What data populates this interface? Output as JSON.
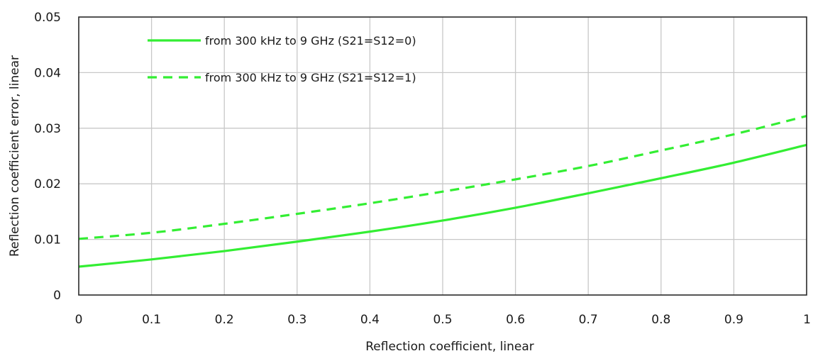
{
  "chart_data": {
    "type": "line",
    "title": "",
    "xlabel": "Reflection coefficient, linear",
    "ylabel": "Reflection coefficient error, linear",
    "xlim": [
      0,
      1
    ],
    "ylim": [
      0,
      0.05
    ],
    "x_ticks": [
      0,
      0.1,
      0.2,
      0.3,
      0.4,
      0.5,
      0.6,
      0.7,
      0.8,
      0.9,
      1
    ],
    "x_tick_labels": [
      "0",
      "0.1",
      "0.2",
      "0.3",
      "0.4",
      "0.5",
      "0.6",
      "0.7",
      "0.8",
      "0.9",
      "1"
    ],
    "y_ticks": [
      0,
      0.01,
      0.02,
      0.03,
      0.04,
      0.05
    ],
    "y_tick_labels": [
      "0",
      "0.01",
      "0.02",
      "0.03",
      "0.04",
      "0.05"
    ],
    "grid": true,
    "legend_position": "top-left",
    "x": [
      0,
      0.1,
      0.2,
      0.3,
      0.4,
      0.5,
      0.6,
      0.7,
      0.8,
      0.9,
      1
    ],
    "series": [
      {
        "name": "from 300 kHz to 9 GHz (S21=S12=0)",
        "color": "#33ee33",
        "dash": "solid",
        "values": [
          0.0051,
          0.0064,
          0.0079,
          0.0096,
          0.0114,
          0.0134,
          0.0157,
          0.0183,
          0.021,
          0.0238,
          0.027
        ]
      },
      {
        "name": "from 300 kHz to 9 GHz (S21=S12=1)",
        "color": "#33ee33",
        "dash": "dashed",
        "values": [
          0.0101,
          0.0112,
          0.0128,
          0.0146,
          0.0165,
          0.0186,
          0.0208,
          0.0232,
          0.026,
          0.0289,
          0.0322
        ]
      }
    ]
  }
}
